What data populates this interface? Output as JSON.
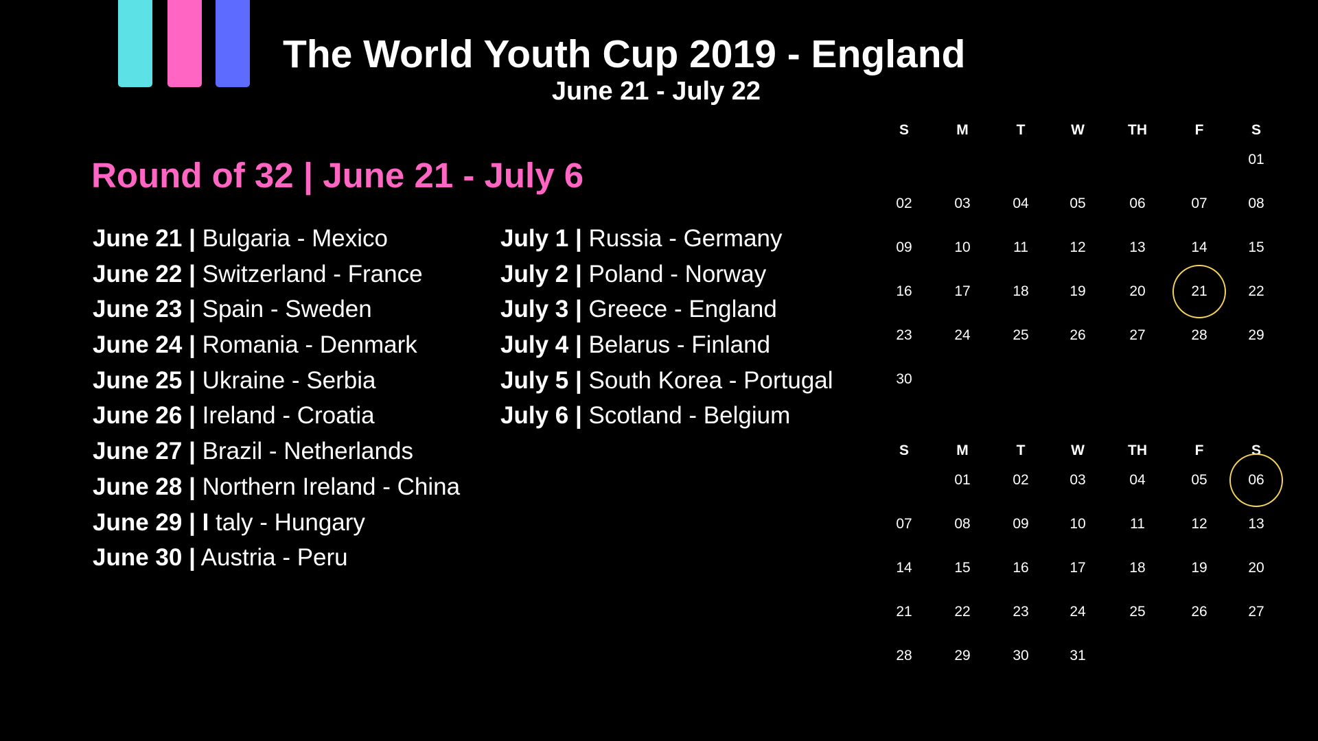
{
  "colors": {
    "background": "#000000",
    "text": "#ffffff",
    "heading_pink": "#ff66c4",
    "highlight_circle": "#f4d35e",
    "logo_bars": [
      "#5ce1e6",
      "#ff66c4",
      "#5e6bff"
    ]
  },
  "logo": {
    "icon": "three-vertical-bars-logo"
  },
  "header": {
    "title": "The World Youth Cup 2019 - England",
    "subtitle": "June 21 - July 22"
  },
  "round": {
    "heading": "Round of 32 | June 21 - July 6",
    "column1": [
      {
        "date": "June 21 |",
        "teams": "Bulgaria - Mexico"
      },
      {
        "date": "June 22 |",
        "teams": "Switzerland - France"
      },
      {
        "date": "June 23 |",
        "teams": "Spain - Sweden"
      },
      {
        "date": "June 24 |",
        "teams": "Romania - Denmark"
      },
      {
        "date": "June 25 |",
        "teams": "Ukraine - Serbia"
      },
      {
        "date": "June 26 |",
        "teams": "Ireland - Croatia"
      },
      {
        "date": "June 27 |",
        "teams": "Brazil - Netherlands"
      },
      {
        "date": "June 28 |",
        "teams": "Northern Ireland - China"
      },
      {
        "date": "June 29 | I",
        "teams": "taly - Hungary"
      },
      {
        "date": "June 30 |",
        "teams": "Austria - Peru"
      }
    ],
    "column2": [
      {
        "date": "July 1 |",
        "teams": "Russia - Germany"
      },
      {
        "date": "July 2 |",
        "teams": "Poland - Norway"
      },
      {
        "date": "July 3 |",
        "teams": "Greece - England"
      },
      {
        "date": "July 4 |",
        "teams": "Belarus - Finland"
      },
      {
        "date": "July 5 |",
        "teams": "South Korea - Portugal"
      },
      {
        "date": "July 6 |",
        "teams": "Scotland - Belgium"
      }
    ]
  },
  "calendars": [
    {
      "name": "june",
      "weekdays": [
        "S",
        "M",
        "T",
        "W",
        "TH",
        "F",
        "S"
      ],
      "weeks": [
        [
          "",
          "",
          "",
          "",
          "",
          "",
          "01"
        ],
        [
          "02",
          "03",
          "04",
          "05",
          "06",
          "07",
          "08"
        ],
        [
          "09",
          "10",
          "11",
          "12",
          "13",
          "14",
          "15"
        ],
        [
          "16",
          "17",
          "18",
          "19",
          "20",
          "21",
          "22"
        ],
        [
          "23",
          "24",
          "25",
          "26",
          "27",
          "28",
          "29"
        ],
        [
          "30",
          "",
          "",
          "",
          "",
          "",
          ""
        ]
      ],
      "highlighted": [
        "21"
      ]
    },
    {
      "name": "july",
      "weekdays": [
        "S",
        "M",
        "T",
        "W",
        "TH",
        "F",
        "S"
      ],
      "weeks": [
        [
          "",
          "01",
          "02",
          "03",
          "04",
          "05",
          "06"
        ],
        [
          "07",
          "08",
          "09",
          "10",
          "11",
          "12",
          "13"
        ],
        [
          "14",
          "15",
          "16",
          "17",
          "18",
          "19",
          "20"
        ],
        [
          "21",
          "22",
          "23",
          "24",
          "25",
          "26",
          "27"
        ],
        [
          "28",
          "29",
          "30",
          "31",
          "",
          "",
          ""
        ]
      ],
      "highlighted": [
        "06"
      ]
    }
  ]
}
